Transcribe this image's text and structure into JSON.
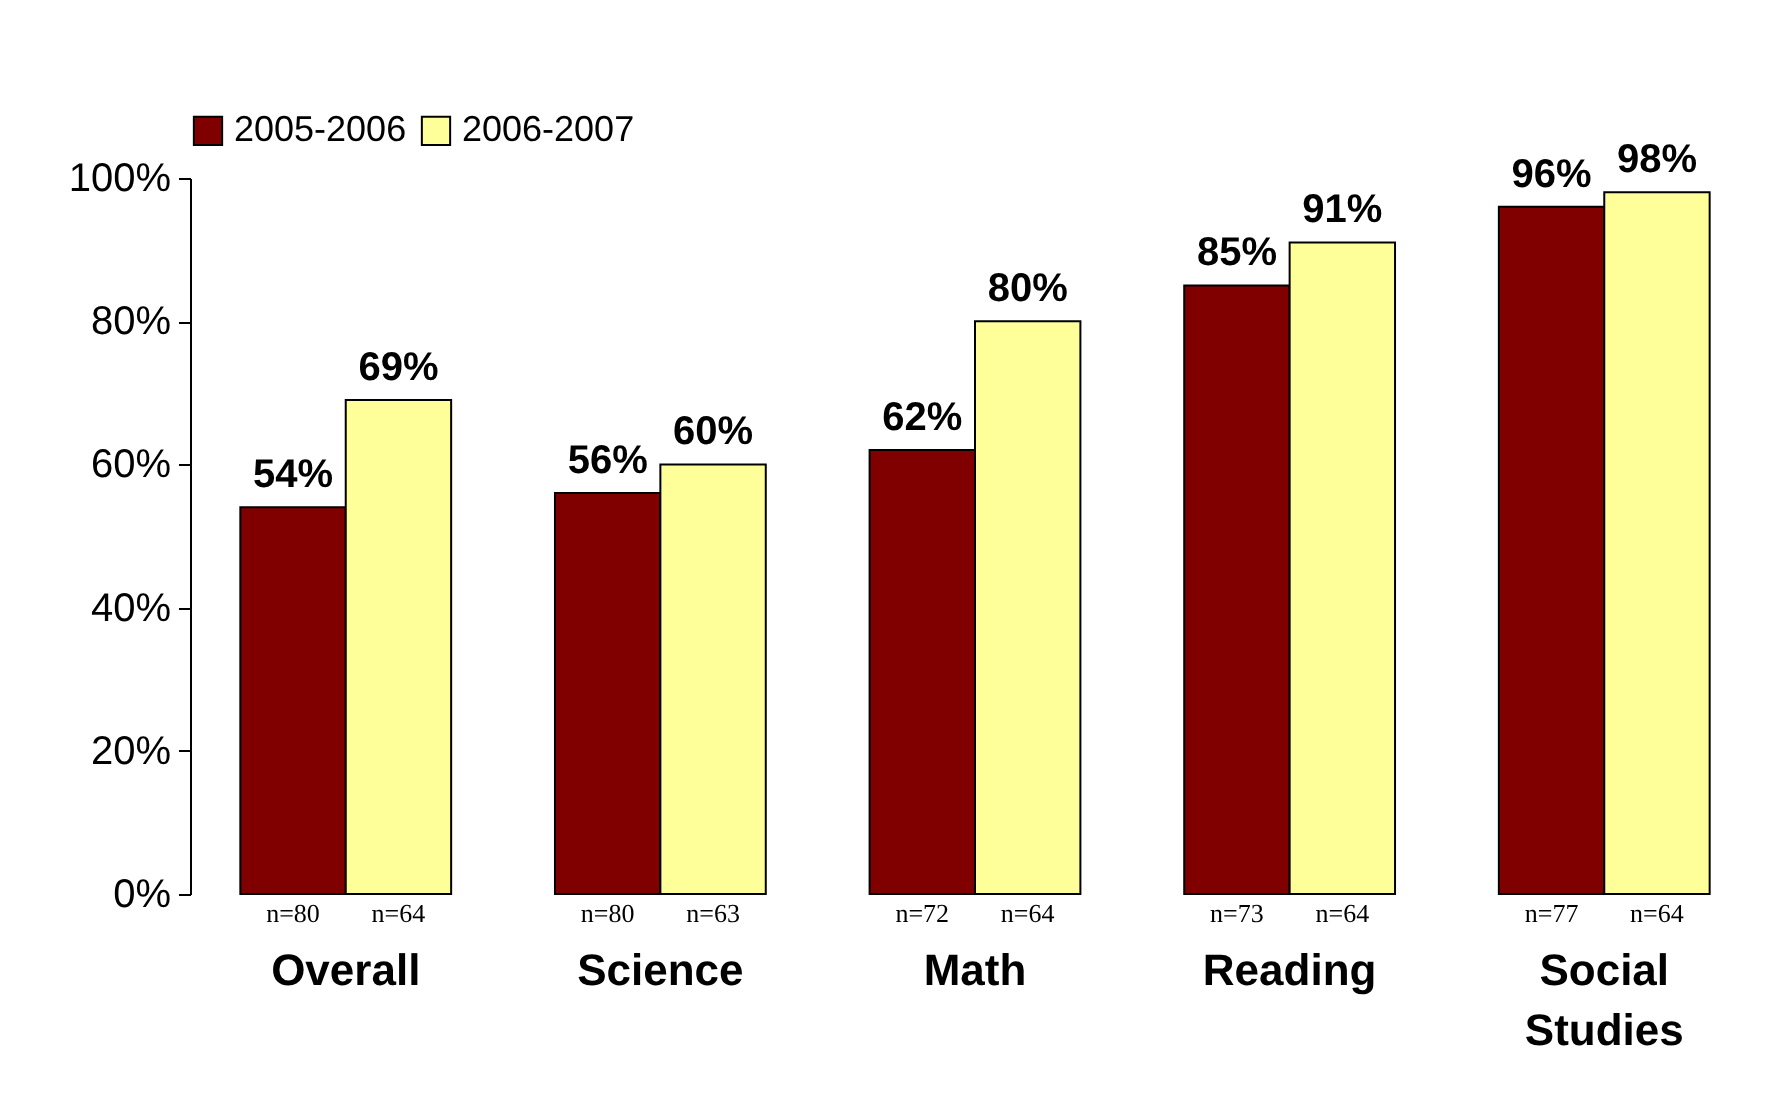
{
  "chart_data": {
    "type": "bar",
    "categories": [
      "Overall",
      "Science",
      "Math",
      "Reading",
      "Social Studies"
    ],
    "series": [
      {
        "name": "2005-2006",
        "color": "#800000",
        "values": [
          54,
          56,
          62,
          85,
          96
        ],
        "value_labels": [
          "54%",
          "56%",
          "62%",
          "85%",
          "96%"
        ]
      },
      {
        "name": "2006-2007",
        "color": "#ffff99",
        "values": [
          69,
          60,
          80,
          91,
          98
        ],
        "value_labels": [
          "69%",
          "60%",
          "80%",
          "91%",
          "98%"
        ]
      }
    ],
    "ylim": [
      0,
      100
    ],
    "yticks": [
      {
        "value": 0,
        "label": "0%"
      },
      {
        "value": 20,
        "label": "20%"
      },
      {
        "value": 40,
        "label": "40%"
      },
      {
        "value": 60,
        "label": "60%"
      },
      {
        "value": 80,
        "label": "80%"
      },
      {
        "value": 100,
        "label": "100%"
      }
    ],
    "legend": "top",
    "grid": false,
    "annotations": [
      {
        "text": "n=80",
        "x": "Overall",
        "y": 0
      },
      {
        "text": "n=64",
        "x": "Overall",
        "y": 0
      },
      {
        "text": "n=80",
        "x": "Science",
        "y": 0
      },
      {
        "text": "n=63",
        "x": "Science",
        "y": 0
      },
      {
        "text": "n=72",
        "x": "Math",
        "y": 0
      },
      {
        "text": "n=64",
        "x": "Math",
        "y": 0
      },
      {
        "text": "n=73",
        "x": "Reading",
        "y": 0
      },
      {
        "text": "n=64",
        "x": "Reading",
        "y": 0
      },
      {
        "text": "n=77",
        "x": "Social Studies",
        "y": 0
      },
      {
        "text": "n=64",
        "x": "Social Studies",
        "y": 0
      }
    ]
  }
}
